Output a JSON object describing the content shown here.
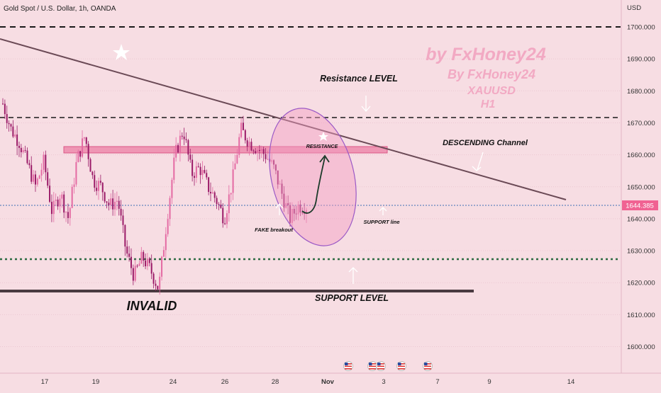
{
  "header": {
    "symbol_title": "Gold Spot / U.S. Dollar, 1h, OANDA",
    "currency": "USD"
  },
  "watermark": {
    "line1": "by FxHoney24",
    "line2": "By FxHoney24",
    "line3": "XAUUSD",
    "line4": "H1"
  },
  "annotations": {
    "resistance_level": "Resistance LEVEL",
    "descending_channel": "DESCENDING Channel",
    "resistance": "RESISTANCE",
    "fake_breakout": "FAKE breakout",
    "support_line": "SUPPORT line",
    "support_level": "SUPPORT LEVEL",
    "invalid": "INVALID"
  },
  "colors": {
    "background": "#f7dde3",
    "candle": "#c0227a",
    "resistance_zone": "#ef8fb0",
    "trendline": "#6b4a56",
    "support_dotted": "#2e6b43",
    "price_badge": "#f06292",
    "watermark": "#f2a9c3"
  },
  "chart_data": {
    "type": "candlestick",
    "title": "Gold Spot / U.S. Dollar, 1h, OANDA",
    "y_axis_unit": "USD",
    "ylim": [
      1592,
      1712
    ],
    "y_ticks": [
      "1600.000",
      "1610.000",
      "1620.000",
      "1630.000",
      "1640.000",
      "1650.000",
      "1660.000",
      "1670.000",
      "1680.000",
      "1690.000",
      "1700.000"
    ],
    "x_ticks": [
      "17",
      "19",
      "24",
      "26",
      "28",
      "Nov",
      "3",
      "7",
      "9",
      "14"
    ],
    "last_price": "1644.385",
    "price_path": [
      1676,
      1668,
      1664,
      1657,
      1650,
      1658,
      1642,
      1648,
      1640,
      1658,
      1666,
      1652,
      1650,
      1644,
      1646,
      1630,
      1622,
      1628,
      1624,
      1618,
      1640,
      1660,
      1668,
      1654,
      1656,
      1650,
      1646,
      1640,
      1652,
      1668,
      1664,
      1662,
      1660,
      1656,
      1648,
      1640,
      1644,
      1644
    ],
    "levels": [
      {
        "name": "upper dashed",
        "price": 1700
      },
      {
        "name": "Resistance LEVEL",
        "price": 1671
      },
      {
        "name": "RESISTANCE zone top",
        "price": 1661.5
      },
      {
        "name": "RESISTANCE zone bottom",
        "price": 1659.8
      },
      {
        "name": "current price",
        "price": 1644.385
      },
      {
        "name": "support dotted",
        "price": 1627
      },
      {
        "name": "SUPPORT LEVEL",
        "price": 1617
      }
    ],
    "descending_trendline": [
      [
        "start",
        1699
      ],
      [
        "14",
        1645
      ]
    ]
  }
}
